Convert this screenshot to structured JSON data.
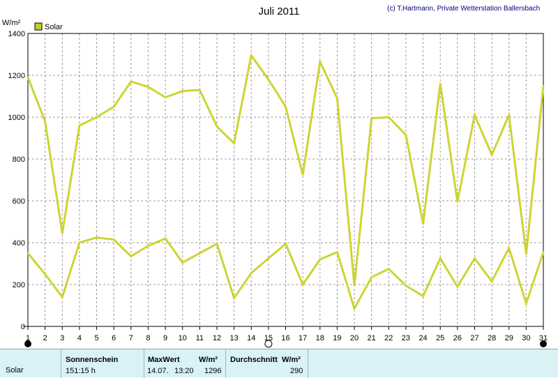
{
  "header": {
    "title": "Juli 2011",
    "credit": "(c) T.Hartmann, Private Wetterstation Ballersbach",
    "unit": "W/m²",
    "legend_label": "Solar"
  },
  "colors": {
    "series": "#cdd433",
    "legend_fill": "#c4cc2a",
    "grid": "#999999",
    "panel_bg": "#d8f2f6"
  },
  "chart_data": {
    "type": "line",
    "title": "Juli 2011",
    "ylabel": "W/m²",
    "xlabel": "",
    "ylim": [
      0,
      1400
    ],
    "yticks": [
      0,
      200,
      400,
      600,
      800,
      1000,
      1200,
      1400
    ],
    "x": [
      1,
      2,
      3,
      4,
      5,
      6,
      7,
      8,
      9,
      10,
      11,
      12,
      13,
      14,
      15,
      16,
      17,
      18,
      19,
      20,
      21,
      22,
      23,
      24,
      25,
      26,
      27,
      28,
      29,
      30,
      31
    ],
    "grid": true,
    "legend_position": "top-left",
    "series": [
      {
        "name": "Solar",
        "role": "max",
        "values": [
          1190,
          980,
          445,
          960,
          1000,
          1050,
          1170,
          1145,
          1095,
          1125,
          1130,
          955,
          875,
          1295,
          1180,
          1050,
          725,
          1265,
          1090,
          195,
          995,
          1000,
          915,
          490,
          1160,
          595,
          1010,
          820,
          1010,
          345,
          1150
        ]
      },
      {
        "name": "Solar",
        "role": "average",
        "values": [
          350,
          250,
          140,
          400,
          425,
          415,
          335,
          385,
          420,
          305,
          350,
          395,
          135,
          255,
          325,
          395,
          200,
          320,
          355,
          85,
          235,
          275,
          195,
          145,
          325,
          190,
          325,
          215,
          375,
          110,
          355
        ]
      }
    ],
    "moon_phases": [
      {
        "day": 1,
        "phase": "new"
      },
      {
        "day": 15,
        "phase": "full"
      },
      {
        "day": 31,
        "phase": "new"
      }
    ]
  },
  "summary": {
    "row_label": "Solar",
    "sunshine_label": "Sonnenschein",
    "sunshine_value": "151:15 h",
    "max_label": "MaxWert",
    "max_unit": "W/m²",
    "max_date": "14.07.",
    "max_time": "13:20",
    "max_value": "1296",
    "avg_label": "Durchschnitt",
    "avg_unit": "W/m²",
    "avg_value": "290"
  }
}
